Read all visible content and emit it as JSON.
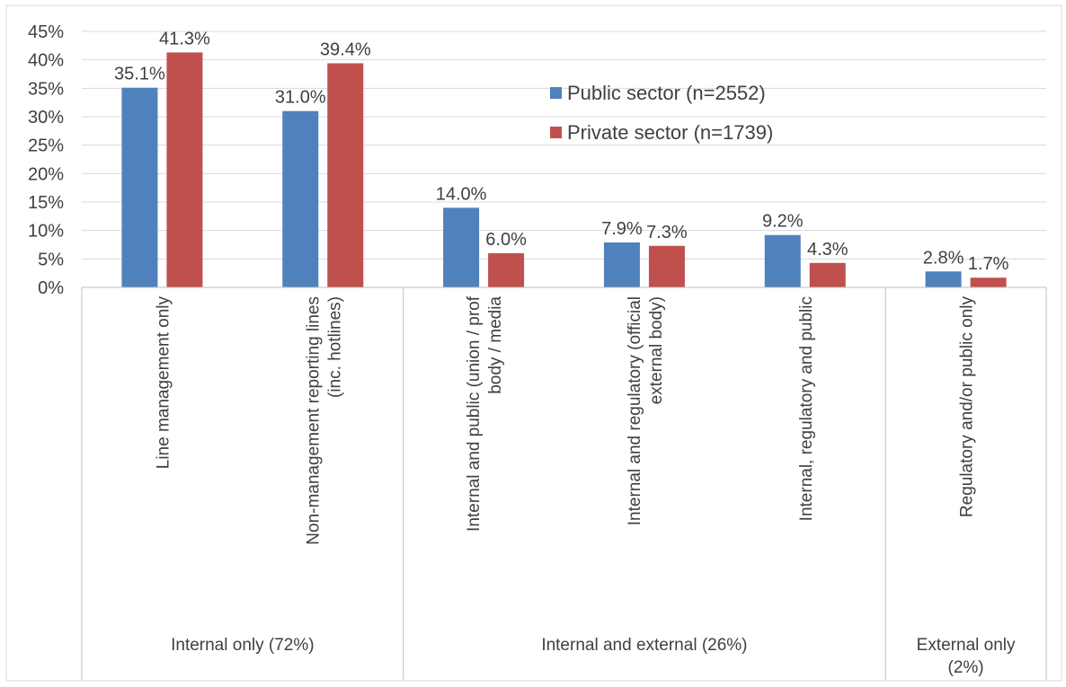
{
  "chart_data": {
    "type": "bar",
    "title": "",
    "xlabel": "",
    "ylabel": "",
    "ylim": [
      0,
      0.45
    ],
    "ytick_labels": [
      "0%",
      "5%",
      "10%",
      "15%",
      "20%",
      "25%",
      "30%",
      "35%",
      "40%",
      "45%"
    ],
    "grid": true,
    "legend_position": "top-right",
    "categories": [
      "Line management only",
      "Non-management reporting lines (inc. hotlines)",
      "Internal and public (union / prof body / media",
      "Internal and regulatory (official external body)",
      "Internal, regulatory and public",
      "Regulatory and/or public only"
    ],
    "category_lines": [
      [
        "Line management only"
      ],
      [
        "Non-management reporting lines",
        "(inc. hotlines)"
      ],
      [
        "Internal and public (union / prof",
        "body / media"
      ],
      [
        "Internal and regulatory (official",
        "external body)"
      ],
      [
        "Internal, regulatory and public"
      ],
      [
        "Regulatory and/or public only"
      ]
    ],
    "groups": [
      {
        "lines": [
          "Internal only (72%)"
        ],
        "categories": [
          0,
          1
        ]
      },
      {
        "lines": [
          "Internal and external (26%)"
        ],
        "categories": [
          2,
          3,
          4
        ]
      },
      {
        "lines": [
          "External only",
          "(2%)"
        ],
        "categories": [
          5
        ]
      }
    ],
    "series": [
      {
        "name": "Public sector (n=2552)",
        "color": "#4f81bd",
        "values": [
          0.351,
          0.31,
          0.14,
          0.079,
          0.092,
          0.028
        ],
        "labels": [
          "35.1%",
          "31.0%",
          "14.0%",
          "7.9%",
          "9.2%",
          "2.8%"
        ]
      },
      {
        "name": "Private sector (n=1739)",
        "color": "#c0504d",
        "values": [
          0.413,
          0.394,
          0.06,
          0.073,
          0.043,
          0.017
        ],
        "labels": [
          "41.3%",
          "39.4%",
          "6.0%",
          "7.3%",
          "4.3%",
          "1.7%"
        ]
      }
    ]
  }
}
